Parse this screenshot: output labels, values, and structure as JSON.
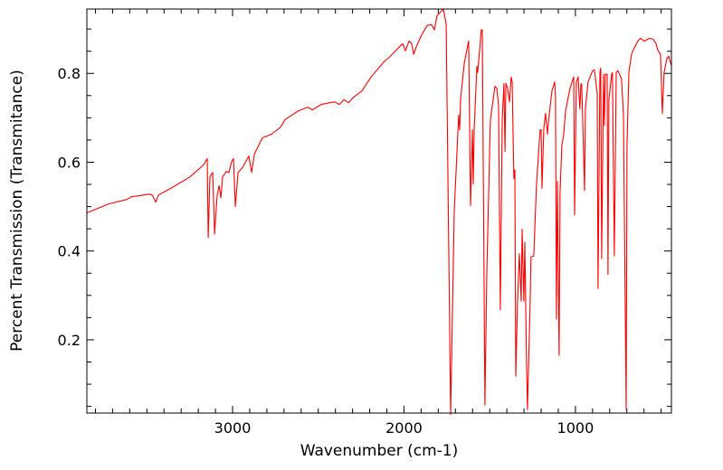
{
  "chart_data": {
    "type": "line",
    "title": "",
    "xlabel": "Wavenumber (cm-1)",
    "ylabel": "Percent Transmission (Transmitance)",
    "xlim": [
      3850,
      440
    ],
    "ylim": [
      0.035,
      0.945
    ],
    "x_reversed": true,
    "grid": false,
    "legend": "none",
    "xticks": [
      3000,
      2000,
      1000
    ],
    "xtick_labels": [
      "3000",
      "2000",
      "1000"
    ],
    "yticks": [
      0.2,
      0.4,
      0.6,
      0.8
    ],
    "ytick_labels": [
      "0.2",
      "0.4",
      "0.6",
      "0.8"
    ],
    "x_minor_step": 100,
    "y_minor_step": 0.05,
    "series": [
      {
        "name": "spectrum",
        "color": "#ff0000",
        "points": [
          [
            3849,
            0.486
          ],
          [
            3723,
            0.506
          ],
          [
            3617,
            0.516
          ],
          [
            3591,
            0.522
          ],
          [
            3485,
            0.528
          ],
          [
            3469,
            0.526
          ],
          [
            3448,
            0.51
          ],
          [
            3433,
            0.526
          ],
          [
            3353,
            0.543
          ],
          [
            3248,
            0.567
          ],
          [
            3169,
            0.594
          ],
          [
            3148,
            0.608
          ],
          [
            3142,
            0.43
          ],
          [
            3132,
            0.567
          ],
          [
            3116,
            0.577
          ],
          [
            3105,
            0.438
          ],
          [
            3090,
            0.526
          ],
          [
            3079,
            0.547
          ],
          [
            3068,
            0.52
          ],
          [
            3058,
            0.567
          ],
          [
            3037,
            0.579
          ],
          [
            3021,
            0.577
          ],
          [
            3005,
            0.602
          ],
          [
            2995,
            0.608
          ],
          [
            2984,
            0.5
          ],
          [
            2968,
            0.577
          ],
          [
            2942,
            0.588
          ],
          [
            2905,
            0.614
          ],
          [
            2889,
            0.577
          ],
          [
            2873,
            0.618
          ],
          [
            2826,
            0.655
          ],
          [
            2773,
            0.663
          ],
          [
            2720,
            0.679
          ],
          [
            2694,
            0.696
          ],
          [
            2615,
            0.716
          ],
          [
            2562,
            0.724
          ],
          [
            2535,
            0.718
          ],
          [
            2483,
            0.73
          ],
          [
            2430,
            0.734
          ],
          [
            2404,
            0.736
          ],
          [
            2377,
            0.73
          ],
          [
            2351,
            0.741
          ],
          [
            2324,
            0.734
          ],
          [
            2298,
            0.745
          ],
          [
            2245,
            0.761
          ],
          [
            2192,
            0.792
          ],
          [
            2113,
            0.828
          ],
          [
            2087,
            0.836
          ],
          [
            2034,
            0.857
          ],
          [
            2008,
            0.867
          ],
          [
            1992,
            0.851
          ],
          [
            1971,
            0.873
          ],
          [
            1955,
            0.867
          ],
          [
            1944,
            0.843
          ],
          [
            1929,
            0.859
          ],
          [
            1902,
            0.883
          ],
          [
            1865,
            0.908
          ],
          [
            1839,
            0.91
          ],
          [
            1823,
            0.898
          ],
          [
            1807,
            0.93
          ],
          [
            1770,
            0.945
          ],
          [
            1754,
            0.91
          ],
          [
            1728,
            0.032
          ],
          [
            1707,
            0.49
          ],
          [
            1681,
            0.706
          ],
          [
            1675,
            0.673
          ],
          [
            1670,
            0.741
          ],
          [
            1649,
            0.822
          ],
          [
            1623,
            0.873
          ],
          [
            1612,
            0.502
          ],
          [
            1601,
            0.673
          ],
          [
            1596,
            0.551
          ],
          [
            1591,
            0.673
          ],
          [
            1575,
            0.816
          ],
          [
            1570,
            0.802
          ],
          [
            1549,
            0.898
          ],
          [
            1543,
            0.898
          ],
          [
            1528,
            0.053
          ],
          [
            1517,
            0.353
          ],
          [
            1496,
            0.694
          ],
          [
            1470,
            0.771
          ],
          [
            1459,
            0.767
          ],
          [
            1448,
            0.726
          ],
          [
            1438,
            0.267
          ],
          [
            1427,
            0.694
          ],
          [
            1417,
            0.777
          ],
          [
            1411,
            0.624
          ],
          [
            1406,
            0.777
          ],
          [
            1396,
            0.767
          ],
          [
            1385,
            0.736
          ],
          [
            1375,
            0.792
          ],
          [
            1369,
            0.781
          ],
          [
            1359,
            0.563
          ],
          [
            1353,
            0.583
          ],
          [
            1348,
            0.118
          ],
          [
            1338,
            0.285
          ],
          [
            1327,
            0.394
          ],
          [
            1316,
            0.287
          ],
          [
            1311,
            0.449
          ],
          [
            1301,
            0.287
          ],
          [
            1295,
            0.42
          ],
          [
            1285,
            0.149
          ],
          [
            1280,
            0.043
          ],
          [
            1264,
            0.285
          ],
          [
            1259,
            0.387
          ],
          [
            1243,
            0.389
          ],
          [
            1227,
            0.551
          ],
          [
            1206,
            0.673
          ],
          [
            1200,
            0.673
          ],
          [
            1195,
            0.541
          ],
          [
            1185,
            0.673
          ],
          [
            1174,
            0.71
          ],
          [
            1163,
            0.663
          ],
          [
            1158,
            0.69
          ],
          [
            1137,
            0.761
          ],
          [
            1121,
            0.781
          ],
          [
            1116,
            0.747
          ],
          [
            1111,
            0.247
          ],
          [
            1105,
            0.557
          ],
          [
            1095,
            0.165
          ],
          [
            1090,
            0.53
          ],
          [
            1079,
            0.638
          ],
          [
            1068,
            0.663
          ],
          [
            1058,
            0.714
          ],
          [
            1031,
            0.767
          ],
          [
            1010,
            0.792
          ],
          [
            1005,
            0.481
          ],
          [
            995,
            0.781
          ],
          [
            984,
            0.792
          ],
          [
            974,
            0.72
          ],
          [
            968,
            0.777
          ],
          [
            963,
            0.775
          ],
          [
            947,
            0.536
          ],
          [
            942,
            0.72
          ],
          [
            926,
            0.781
          ],
          [
            900,
            0.806
          ],
          [
            889,
            0.808
          ],
          [
            873,
            0.755
          ],
          [
            868,
            0.316
          ],
          [
            857,
            0.802
          ],
          [
            852,
            0.812
          ],
          [
            847,
            0.383
          ],
          [
            836,
            0.798
          ],
          [
            831,
            0.683
          ],
          [
            826,
            0.798
          ],
          [
            815,
            0.798
          ],
          [
            810,
            0.347
          ],
          [
            805,
            0.741
          ],
          [
            789,
            0.798
          ],
          [
            784,
            0.802
          ],
          [
            773,
            0.389
          ],
          [
            762,
            0.802
          ],
          [
            752,
            0.806
          ],
          [
            731,
            0.787
          ],
          [
            720,
            0.706
          ],
          [
            704,
            0.043
          ],
          [
            699,
            0.638
          ],
          [
            688,
            0.802
          ],
          [
            673,
            0.843
          ],
          [
            662,
            0.853
          ],
          [
            636,
            0.873
          ],
          [
            620,
            0.879
          ],
          [
            599,
            0.873
          ],
          [
            567,
            0.879
          ],
          [
            546,
            0.877
          ],
          [
            530,
            0.867
          ],
          [
            520,
            0.853
          ],
          [
            504,
            0.843
          ],
          [
            493,
            0.71
          ],
          [
            483,
            0.802
          ],
          [
            467,
            0.833
          ],
          [
            456,
            0.839
          ],
          [
            441,
            0.818
          ]
        ]
      }
    ]
  }
}
